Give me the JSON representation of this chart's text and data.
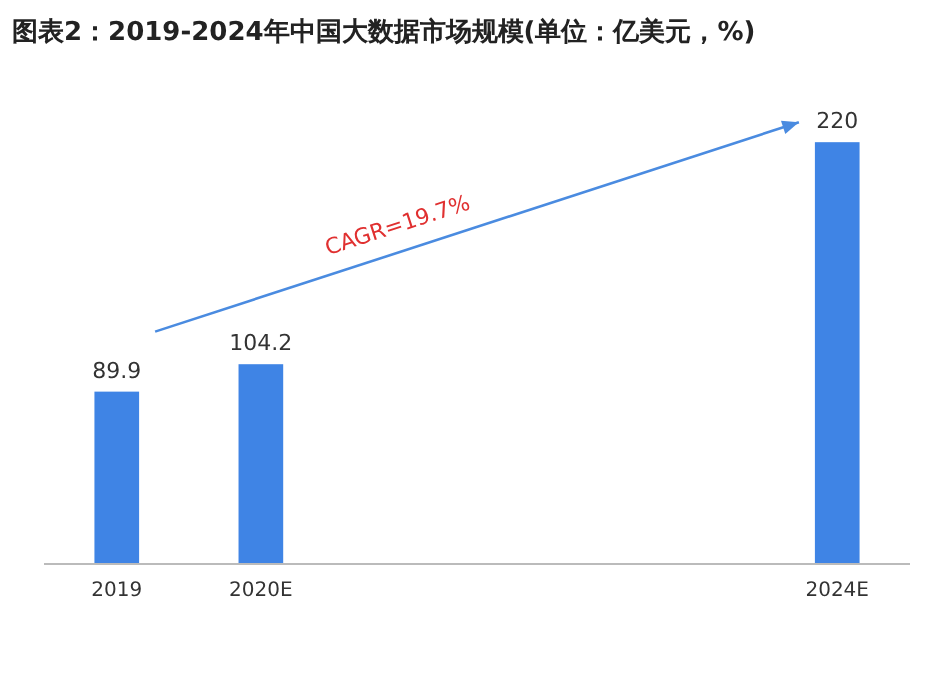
{
  "chart_data": {
    "type": "bar",
    "title": "图表2：2019-2024年中国大数据市场规模(单位：亿美元，%)",
    "categories": [
      "2019",
      "2020E",
      null,
      null,
      null,
      "2024E"
    ],
    "values": [
      89.9,
      104.2,
      null,
      null,
      null,
      220
    ],
    "color": "#3f84e5",
    "data_labels": true,
    "grid": false,
    "annotations": [
      "CAGR=19.7%"
    ]
  }
}
